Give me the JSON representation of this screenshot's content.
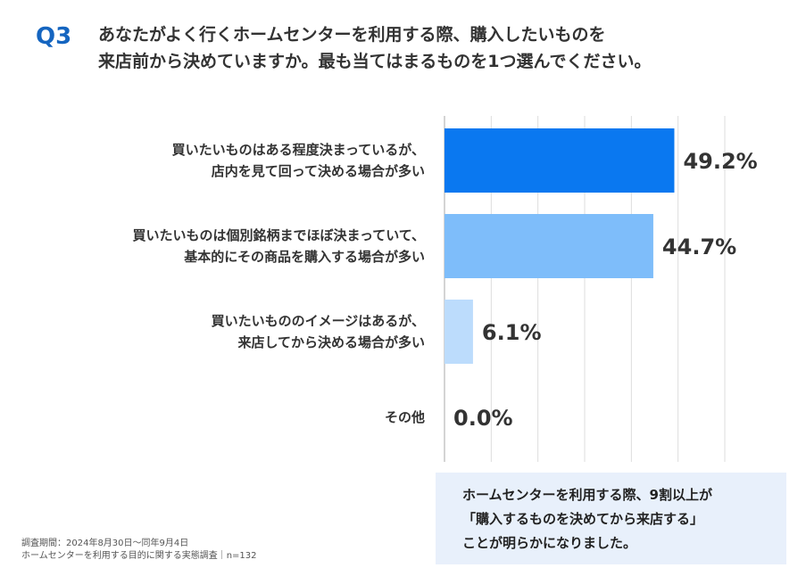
{
  "question": {
    "number": "Q3",
    "lines": [
      "あなたがよく行くホームセンターを利用する際、購入したいものを",
      "来店前から決めていますか。最も当てはまるものを1つ選んでください。"
    ]
  },
  "chart_data": {
    "type": "bar",
    "orientation": "horizontal",
    "categories": [
      [
        "買いたいものはある程度決まっているが、",
        "店内を見て回って決める場合が多い"
      ],
      [
        "買いたいものは個別銘柄までほぼ決まっていて、",
        "基本的にその商品を購入する場合が多い"
      ],
      [
        "買いたいもののイメージはあるが、",
        "来店してから決める場合が多い"
      ],
      [
        "その他"
      ]
    ],
    "values": [
      49.2,
      44.7,
      6.1,
      0.0
    ],
    "value_labels": [
      "49.2%",
      "44.7%",
      "6.1%",
      "0.0%"
    ],
    "bar_colors": [
      "#0a78f0",
      "#7ebdfa",
      "#bcdcfc",
      "#bcdcfc"
    ],
    "xlim": [
      0,
      60
    ],
    "grid": true,
    "title": "",
    "xlabel": "",
    "ylabel": ""
  },
  "callout": {
    "lines": [
      "ホームセンターを利用する際、9割以上が",
      "「購入するものを決めてから来店する」",
      "ことが明らかになりました。"
    ]
  },
  "source": {
    "lines": [
      "調査期間：2024年8月30日〜同年9月4日",
      "ホームセンターを利用する目的に関する実態調査｜n=132"
    ]
  }
}
